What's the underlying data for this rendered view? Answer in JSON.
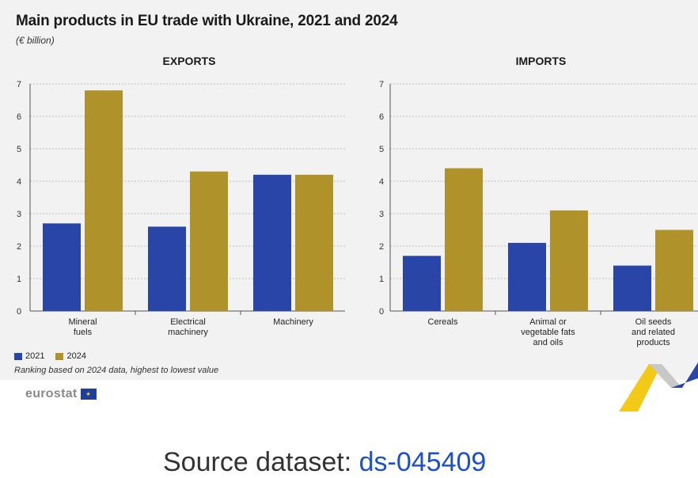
{
  "header": {
    "title": "Main products in EU trade with Ukraine, 2021 and 2024",
    "unit": "(€ billion)"
  },
  "legend": {
    "items": [
      {
        "label": "2021",
        "color": "#2a45a8"
      },
      {
        "label": "2024",
        "color": "#b0922a"
      }
    ]
  },
  "note": "Ranking based on 2024 data, highest to lowest value",
  "logo": {
    "text": "eurostat"
  },
  "source": {
    "prefix": "Source dataset: ",
    "link": "ds-045409"
  },
  "chart_data": [
    {
      "type": "bar",
      "title": "EXPORTS",
      "categories": [
        [
          "Mineral",
          "fuels"
        ],
        [
          "Electrical",
          "machinery"
        ],
        [
          "Machinery"
        ]
      ],
      "series": [
        {
          "name": "2021",
          "values": [
            2.7,
            2.6,
            4.2
          ]
        },
        {
          "name": "2024",
          "values": [
            6.8,
            4.3,
            4.2
          ]
        }
      ],
      "ylim": [
        0,
        7
      ],
      "yticks": [
        0,
        1,
        2,
        3,
        4,
        5,
        6,
        7
      ],
      "grid": true
    },
    {
      "type": "bar",
      "title": "IMPORTS",
      "categories": [
        [
          "Cereals"
        ],
        [
          "Animal or",
          "vegetable fats",
          "and oils"
        ],
        [
          "Oil seeds",
          "and related",
          "products"
        ]
      ],
      "series": [
        {
          "name": "2021",
          "values": [
            1.7,
            2.1,
            1.4
          ]
        },
        {
          "name": "2024",
          "values": [
            4.4,
            3.1,
            2.5
          ]
        }
      ],
      "ylim": [
        0,
        7
      ],
      "yticks": [
        0,
        1,
        2,
        3,
        4,
        5,
        6,
        7
      ],
      "grid": true
    }
  ]
}
